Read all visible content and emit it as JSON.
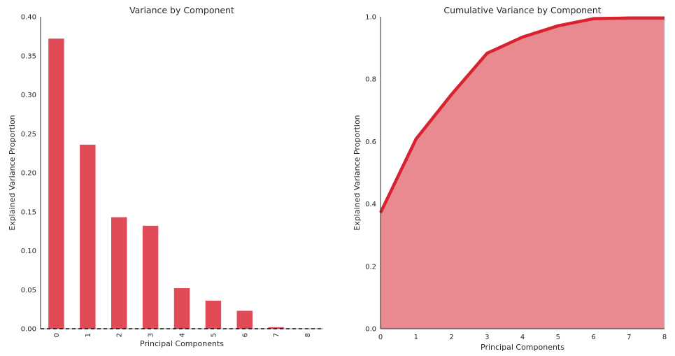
{
  "chart_data": [
    {
      "type": "bar",
      "title": "Variance by Component",
      "xlabel": "Principal Components",
      "ylabel": "Explained Variance Proportion",
      "categories": [
        "0",
        "1",
        "2",
        "3",
        "4",
        "5",
        "6",
        "7",
        "8"
      ],
      "values": [
        0.372,
        0.236,
        0.143,
        0.132,
        0.052,
        0.036,
        0.023,
        0.002,
        0.0
      ],
      "ylim": [
        0,
        0.4
      ],
      "yticks": [
        "0.00",
        "0.05",
        "0.10",
        "0.15",
        "0.20",
        "0.25",
        "0.30",
        "0.35",
        "0.40"
      ],
      "bar_color": "#e04b57",
      "baseline": "dashed",
      "grid": false
    },
    {
      "type": "area",
      "title": "Cumulative Variance by Component",
      "xlabel": "Principal Components",
      "ylabel": "Explained Variance Proportion",
      "x": [
        0,
        1,
        2,
        3,
        4,
        5,
        6,
        7,
        8
      ],
      "values": [
        0.372,
        0.608,
        0.751,
        0.883,
        0.935,
        0.971,
        0.994,
        0.996,
        0.996
      ],
      "xlim": [
        0,
        8
      ],
      "ylim": [
        0,
        1.0
      ],
      "xticks": [
        "0",
        "1",
        "2",
        "3",
        "4",
        "5",
        "6",
        "7",
        "8"
      ],
      "yticks": [
        "0.0",
        "0.2",
        "0.4",
        "0.6",
        "0.8",
        "1.0"
      ],
      "line_color": "#d92230",
      "fill_color": "#e98a90",
      "grid": false
    }
  ]
}
